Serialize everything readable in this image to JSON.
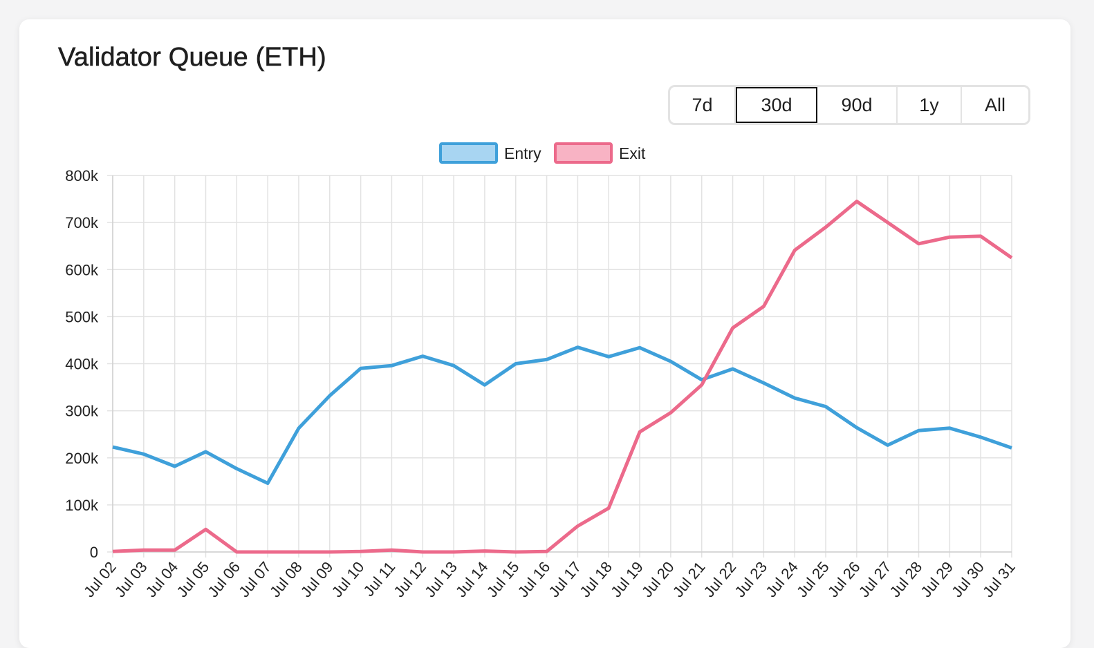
{
  "card": {
    "title": "Validator Queue (ETH)"
  },
  "range_buttons": [
    {
      "label": "7d",
      "active": false
    },
    {
      "label": "30d",
      "active": true
    },
    {
      "label": "90d",
      "active": false
    },
    {
      "label": "1y",
      "active": false
    },
    {
      "label": "All",
      "active": false
    }
  ],
  "colors": {
    "entry": "#3fa0da",
    "entry_fill": "#a8d5f2",
    "exit": "#ec6a8b",
    "exit_fill": "#f8b3c4",
    "grid": "#e2e2e2"
  },
  "chart_data": {
    "type": "line",
    "title": "",
    "xlabel": "",
    "ylabel": "",
    "categories": [
      "Jul 02",
      "Jul 03",
      "Jul 04",
      "Jul 05",
      "Jul 06",
      "Jul 07",
      "Jul 08",
      "Jul 09",
      "Jul 10",
      "Jul 11",
      "Jul 12",
      "Jul 13",
      "Jul 14",
      "Jul 15",
      "Jul 16",
      "Jul 17",
      "Jul 18",
      "Jul 19",
      "Jul 20",
      "Jul 21",
      "Jul 22",
      "Jul 23",
      "Jul 24",
      "Jul 25",
      "Jul 26",
      "Jul 27",
      "Jul 28",
      "Jul 29",
      "Jul 30",
      "Jul 31"
    ],
    "ylim": [
      0,
      800000
    ],
    "yticks": [
      0,
      100000,
      200000,
      300000,
      400000,
      500000,
      600000,
      700000,
      800000
    ],
    "ytick_labels": [
      "0",
      "100k",
      "200k",
      "300k",
      "400k",
      "500k",
      "600k",
      "700k",
      "800k"
    ],
    "grid": true,
    "legend_position": "top-center",
    "series": [
      {
        "name": "Entry",
        "values": [
          223000,
          208000,
          182000,
          213000,
          177000,
          146000,
          263000,
          332000,
          390000,
          396000,
          416000,
          396000,
          355000,
          400000,
          409000,
          435000,
          415000,
          434000,
          405000,
          366000,
          389000,
          359000,
          327000,
          309000,
          264000,
          227000,
          258000,
          263000,
          244000,
          221000
        ]
      },
      {
        "name": "Exit",
        "values": [
          1000,
          4000,
          4000,
          48000,
          0,
          0,
          0,
          0,
          1000,
          4000,
          0,
          0,
          2000,
          0,
          1000,
          55000,
          93000,
          255000,
          296000,
          355000,
          476000,
          522000,
          641000,
          690000,
          745000,
          700000,
          655000,
          669000,
          671000,
          625000
        ]
      }
    ]
  }
}
